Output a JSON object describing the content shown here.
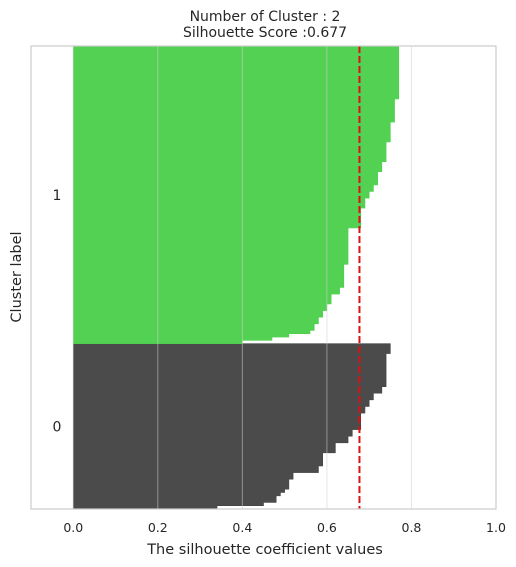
{
  "chart_data": {
    "type": "area",
    "title_line1": "Number of Cluster : 2",
    "title_line2": "Silhouette Score :0.677",
    "xlabel": "The silhouette coefficient values",
    "ylabel": "Cluster label",
    "xlim": [
      -0.1,
      1.0
    ],
    "xticks": [
      "0.0",
      "0.2",
      "0.4",
      "0.6",
      "0.8",
      "1.0"
    ],
    "xtick_values": [
      0.0,
      0.2,
      0.4,
      0.6,
      0.8,
      1.0
    ],
    "grid": true,
    "average_silhouette_score": 0.677,
    "reference_line_color": "#dd1111",
    "clusters": [
      {
        "label": "0",
        "color": "#444444",
        "values_sorted_descending": [
          0.75,
          0.75,
          0.75,
          0.74,
          0.74,
          0.74,
          0.74,
          0.74,
          0.74,
          0.74,
          0.74,
          0.74,
          0.74,
          0.73,
          0.73,
          0.71,
          0.71,
          0.7,
          0.7,
          0.69,
          0.69,
          0.68,
          0.68,
          0.68,
          0.68,
          0.68,
          0.66,
          0.66,
          0.65,
          0.65,
          0.62,
          0.62,
          0.62,
          0.59,
          0.59,
          0.59,
          0.59,
          0.58,
          0.58,
          0.52,
          0.52,
          0.51,
          0.51,
          0.51,
          0.5,
          0.49,
          0.48,
          0.48,
          0.45,
          0.34
        ]
      },
      {
        "label": "1",
        "color": "#4ccf4c",
        "values_sorted_descending": [
          0.77,
          0.77,
          0.77,
          0.77,
          0.77,
          0.77,
          0.77,
          0.77,
          0.77,
          0.77,
          0.77,
          0.77,
          0.77,
          0.77,
          0.77,
          0.77,
          0.76,
          0.76,
          0.76,
          0.76,
          0.76,
          0.76,
          0.76,
          0.75,
          0.75,
          0.75,
          0.75,
          0.75,
          0.75,
          0.74,
          0.74,
          0.74,
          0.74,
          0.74,
          0.74,
          0.73,
          0.73,
          0.73,
          0.72,
          0.72,
          0.72,
          0.72,
          0.71,
          0.71,
          0.7,
          0.7,
          0.69,
          0.69,
          0.69,
          0.68,
          0.68,
          0.68,
          0.68,
          0.68,
          0.68,
          0.65,
          0.65,
          0.65,
          0.65,
          0.65,
          0.65,
          0.65,
          0.65,
          0.65,
          0.65,
          0.65,
          0.64,
          0.64,
          0.64,
          0.64,
          0.64,
          0.64,
          0.64,
          0.63,
          0.63,
          0.61,
          0.61,
          0.61,
          0.6,
          0.6,
          0.59,
          0.59,
          0.58,
          0.58,
          0.57,
          0.57,
          0.56,
          0.51,
          0.47,
          0.4
        ]
      }
    ]
  }
}
